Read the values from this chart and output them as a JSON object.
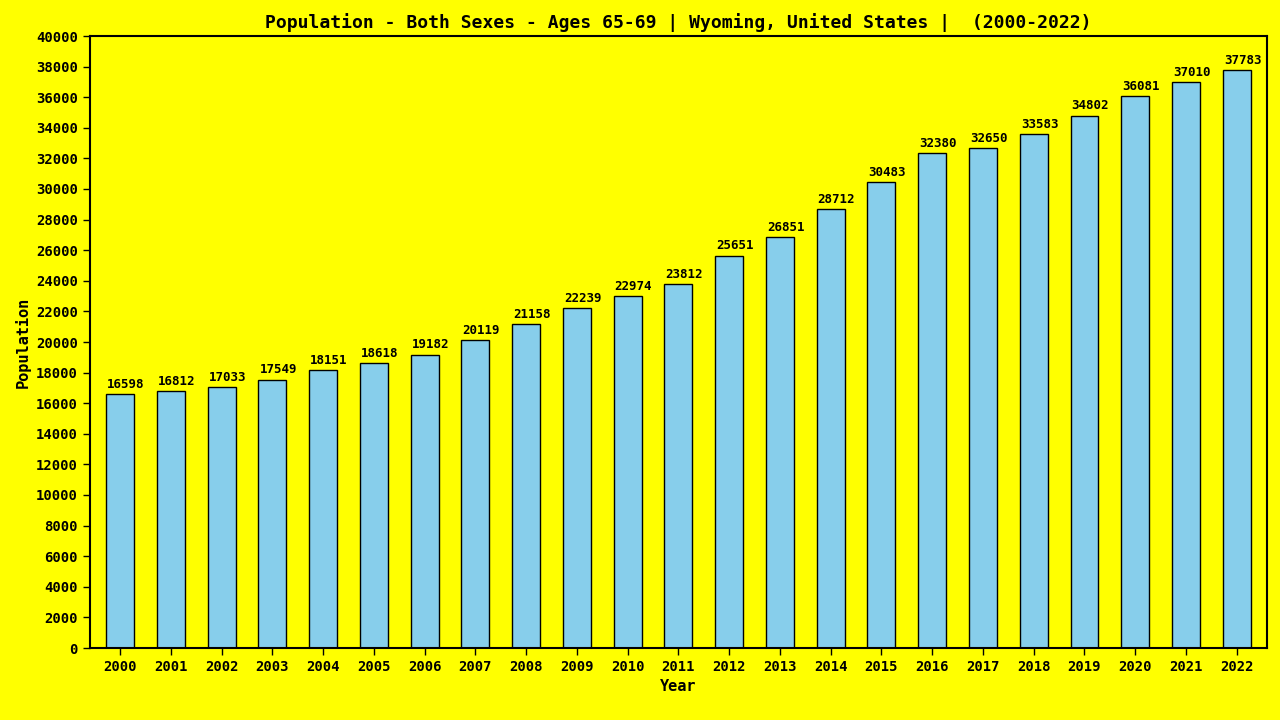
{
  "title": "Population - Both Sexes - Ages 65-69 | Wyoming, United States |  (2000-2022)",
  "xlabel": "Year",
  "ylabel": "Population",
  "background_color": "#FFFF00",
  "bar_color": "#87CEEB",
  "bar_edge_color": "#000000",
  "text_color": "#000000",
  "years": [
    2000,
    2001,
    2002,
    2003,
    2004,
    2005,
    2006,
    2007,
    2008,
    2009,
    2010,
    2011,
    2012,
    2013,
    2014,
    2015,
    2016,
    2017,
    2018,
    2019,
    2020,
    2021,
    2022
  ],
  "values": [
    16598,
    16812,
    17033,
    17549,
    18151,
    18618,
    19182,
    20119,
    21158,
    22239,
    22974,
    23812,
    25651,
    26851,
    28712,
    30483,
    32380,
    32650,
    33583,
    34802,
    36081,
    37010,
    37783
  ],
  "ylim": [
    0,
    40000
  ],
  "ytick_step": 2000,
  "title_fontsize": 13,
  "axis_label_fontsize": 11,
  "tick_fontsize": 10,
  "bar_label_fontsize": 9,
  "bar_width": 0.55
}
